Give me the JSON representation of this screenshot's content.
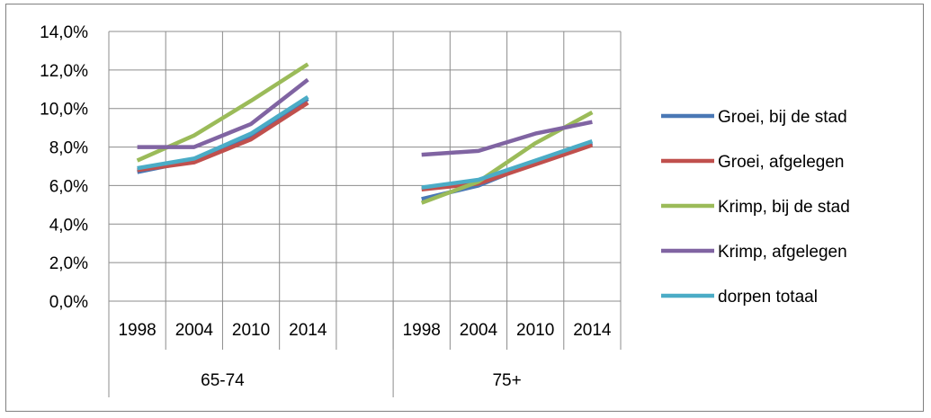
{
  "chart_data": {
    "type": "line",
    "title": "",
    "xlabel": "",
    "ylabel": "",
    "ylim": [
      0,
      14
    ],
    "y_ticks": [
      0,
      2,
      4,
      6,
      8,
      10,
      12,
      14
    ],
    "y_tick_labels": [
      "0,0%",
      "2,0%",
      "4,0%",
      "6,0%",
      "8,0%",
      "10,0%",
      "12,0%",
      "14,0%"
    ],
    "grid": true,
    "legend_position": "right",
    "groups": [
      {
        "label": "65-74",
        "categories": [
          "1998",
          "2004",
          "2010",
          "2014"
        ]
      },
      {
        "label": "75+",
        "categories": [
          "1998",
          "2004",
          "2010",
          "2014"
        ]
      }
    ],
    "series": [
      {
        "name": "Groei, bij de stad",
        "color": "#4a78b5",
        "values": [
          [
            6.7,
            7.3,
            8.6,
            10.5
          ],
          [
            5.3,
            6.0,
            7.2,
            8.2
          ]
        ]
      },
      {
        "name": "Groei, afgelegen",
        "color": "#c0504d",
        "values": [
          [
            6.8,
            7.2,
            8.4,
            10.3
          ],
          [
            5.8,
            6.1,
            7.1,
            8.1
          ]
        ]
      },
      {
        "name": "Krimp, bij de stad",
        "color": "#9bbb59",
        "values": [
          [
            7.3,
            8.6,
            10.4,
            12.3
          ],
          [
            5.1,
            6.2,
            8.2,
            9.8
          ]
        ]
      },
      {
        "name": "Krimp, afgelegen",
        "color": "#8064a2",
        "values": [
          [
            8.0,
            8.0,
            9.2,
            11.5
          ],
          [
            7.6,
            7.8,
            8.7,
            9.3
          ]
        ]
      },
      {
        "name": "dorpen totaal",
        "color": "#4bacc6",
        "values": [
          [
            6.9,
            7.4,
            8.7,
            10.6
          ],
          [
            5.9,
            6.3,
            7.3,
            8.3
          ]
        ]
      }
    ]
  }
}
